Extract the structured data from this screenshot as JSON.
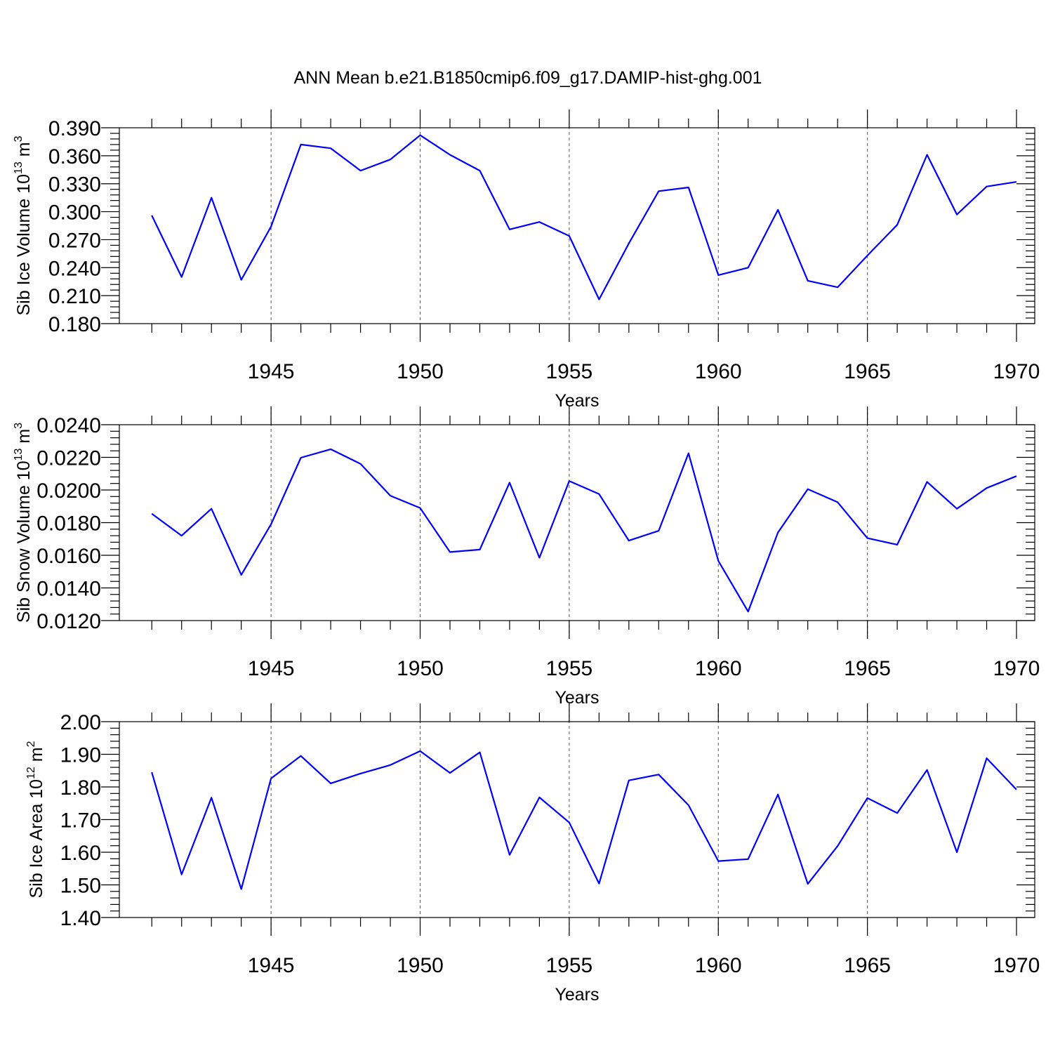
{
  "title": "ANN Mean b.e21.B1850cmip6.f09_g17.DAMIP-hist-ghg.001",
  "colors": {
    "series": "#0000ff",
    "grid": "#555555"
  },
  "chart_data": [
    {
      "type": "line",
      "xlabel": "Years",
      "ylabel_parts": [
        "Sib Ice Volume 10",
        "13",
        " m",
        "3"
      ],
      "xlim": [
        1940.5,
        1970
      ],
      "ylim": [
        0.18,
        0.39
      ],
      "x_ticks": [
        "1945",
        "1950",
        "1955",
        "1960",
        "1965",
        "1970"
      ],
      "y_ticks": [
        "0.180",
        "0.210",
        "0.240",
        "0.270",
        "0.300",
        "0.330",
        "0.360",
        "0.390"
      ],
      "x": [
        1941,
        1942,
        1943,
        1944,
        1945,
        1946,
        1947,
        1948,
        1949,
        1950,
        1951,
        1952,
        1953,
        1954,
        1955,
        1956,
        1957,
        1958,
        1959,
        1960,
        1961,
        1962,
        1963,
        1964,
        1965,
        1966,
        1967,
        1968,
        1969,
        1970
      ],
      "values": [
        0.296,
        0.23,
        0.315,
        0.227,
        0.284,
        0.372,
        0.368,
        0.344,
        0.356,
        0.382,
        0.361,
        0.344,
        0.281,
        0.289,
        0.274,
        0.206,
        0.266,
        0.322,
        0.326,
        0.232,
        0.24,
        0.302,
        0.226,
        0.219,
        0.253,
        0.286,
        0.361,
        0.297,
        0.327,
        0.332
      ]
    },
    {
      "type": "line",
      "xlabel": "Years",
      "ylabel_parts": [
        "Sib Snow Volume 10",
        "13",
        " m",
        "3"
      ],
      "xlim": [
        1940.5,
        1970
      ],
      "ylim": [
        0.012,
        0.024
      ],
      "x_ticks": [
        "1945",
        "1950",
        "1955",
        "1960",
        "1965",
        "1970"
      ],
      "y_ticks": [
        "0.0120",
        "0.0140",
        "0.0160",
        "0.0180",
        "0.0200",
        "0.0220",
        "0.0240"
      ],
      "x": [
        1941,
        1942,
        1943,
        1944,
        1945,
        1946,
        1947,
        1948,
        1949,
        1950,
        1951,
        1952,
        1953,
        1954,
        1955,
        1956,
        1957,
        1958,
        1959,
        1960,
        1961,
        1962,
        1963,
        1964,
        1965,
        1966,
        1967,
        1968,
        1969,
        1970
      ],
      "values": [
        0.01855,
        0.0172,
        0.01885,
        0.0148,
        0.0179,
        0.02198,
        0.0225,
        0.0216,
        0.01965,
        0.0189,
        0.0162,
        0.01635,
        0.02045,
        0.01585,
        0.02055,
        0.01975,
        0.0169,
        0.0175,
        0.02225,
        0.01565,
        0.01255,
        0.0174,
        0.02005,
        0.01925,
        0.01705,
        0.01665,
        0.0205,
        0.01885,
        0.02012,
        0.02085
      ]
    },
    {
      "type": "line",
      "xlabel": "Years",
      "ylabel_parts": [
        "Sib Ice Area 10",
        "12",
        " m",
        "2"
      ],
      "xlim": [
        1940.5,
        1970
      ],
      "ylim": [
        1.4,
        2.0
      ],
      "x_ticks": [
        "1945",
        "1950",
        "1955",
        "1960",
        "1965",
        "1970"
      ],
      "y_ticks": [
        "1.40",
        "1.50",
        "1.60",
        "1.70",
        "1.80",
        "1.90",
        "2.00"
      ],
      "x": [
        1941,
        1942,
        1943,
        1944,
        1945,
        1946,
        1947,
        1948,
        1949,
        1950,
        1951,
        1952,
        1953,
        1954,
        1955,
        1956,
        1957,
        1958,
        1959,
        1960,
        1961,
        1962,
        1963,
        1964,
        1965,
        1966,
        1967,
        1968,
        1969,
        1970
      ],
      "values": [
        1.845,
        1.532,
        1.767,
        1.487,
        1.826,
        1.895,
        1.811,
        1.841,
        1.867,
        1.91,
        1.843,
        1.906,
        1.592,
        1.768,
        1.691,
        1.504,
        1.82,
        1.838,
        1.744,
        1.573,
        1.579,
        1.777,
        1.503,
        1.619,
        1.766,
        1.72,
        1.852,
        1.6,
        1.888,
        1.792
      ]
    }
  ]
}
